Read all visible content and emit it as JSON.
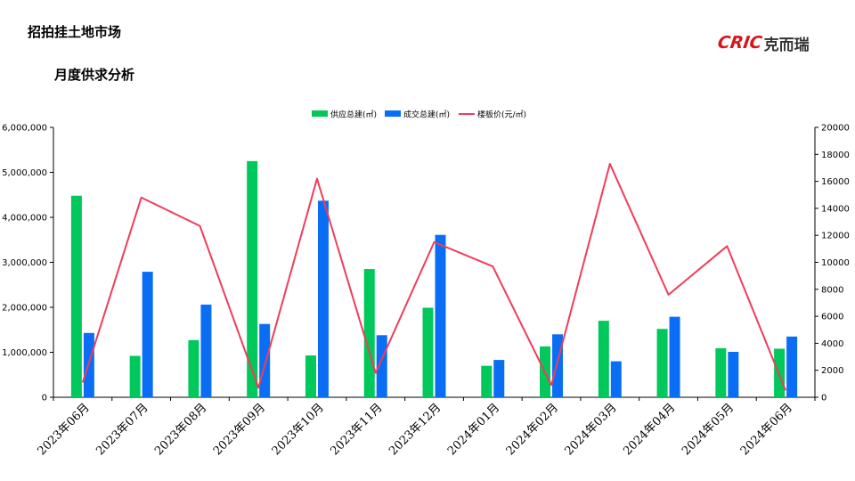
{
  "page": {
    "title": "招拍挂土地市场",
    "subtitle": "月度供求分析",
    "logo": {
      "mark": "CRIC",
      "text": "克而瑞",
      "color": "#d7141a"
    }
  },
  "chart_data": {
    "type": "bar",
    "categories": [
      "2023年06月",
      "2023年07月",
      "2023年08月",
      "2023年09月",
      "2023年10月",
      "2023年11月",
      "2023年12月",
      "2024年01月",
      "2024年02月",
      "2024年03月",
      "2024年04月",
      "2024年05月",
      "2024年06月"
    ],
    "series": [
      {
        "name": "供应总建(㎡)",
        "type": "bar",
        "axis": "left",
        "color": "#00c85a",
        "values": [
          4480000,
          920000,
          1270000,
          5250000,
          930000,
          2850000,
          1990000,
          700000,
          1130000,
          1700000,
          1520000,
          1090000,
          1080000
        ]
      },
      {
        "name": "成交总建(㎡)",
        "type": "bar",
        "axis": "left",
        "color": "#0a6ef5",
        "values": [
          1430000,
          2790000,
          2060000,
          1630000,
          4370000,
          1380000,
          3610000,
          830000,
          1400000,
          800000,
          1790000,
          1010000,
          1350000
        ]
      },
      {
        "name": "楼板价(元/㎡)",
        "type": "line",
        "axis": "right",
        "color": "#f03c5a",
        "values": [
          1100,
          14800,
          12700,
          700,
          16200,
          1800,
          11500,
          9700,
          900,
          17300,
          7600,
          11200,
          500
        ]
      }
    ],
    "y_left": {
      "min": 0,
      "max": 6000000,
      "ticks": [
        "0",
        "1,000,000",
        "2,000,000",
        "3,000,000",
        "4,000,000",
        "5,000,000",
        "6,000,000"
      ]
    },
    "y_right": {
      "min": 0,
      "max": 20000,
      "ticks": [
        "0",
        "2000",
        "4000",
        "6000",
        "8000",
        "10000",
        "12000",
        "14000",
        "16000",
        "18000",
        "20000"
      ]
    },
    "legend_position": "top-center",
    "grid": false
  }
}
